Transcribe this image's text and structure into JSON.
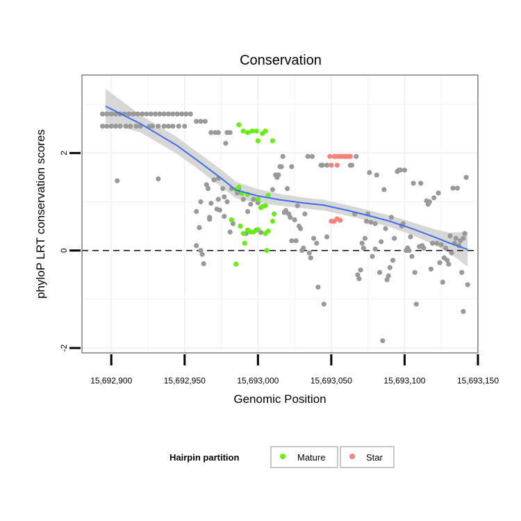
{
  "chart_data": {
    "type": "scatter",
    "title": "Conservation",
    "xlabel": "Genomic Position",
    "ylabel": "phyloP LRT conservation scores",
    "xlim": [
      15692880,
      15693150
    ],
    "ylim": [
      -2.1,
      3.6
    ],
    "x_ticks": [
      15692900,
      15692950,
      15693000,
      15693050,
      15693100,
      15693150
    ],
    "x_tick_labels": [
      "15,692,900",
      "15,692,950",
      "15,693,000",
      "15,693,050",
      "15,693,100",
      "15,693,150"
    ],
    "y_ticks": [
      -2,
      0,
      2
    ],
    "y_tick_labels": [
      "-2",
      "0",
      "2"
    ],
    "reference_line": {
      "y": 0,
      "style": "dashed"
    },
    "colors": {
      "other": "#999999",
      "Mature": "#66ee11",
      "Star": "#f5837a",
      "smooth": "#3b6df0",
      "band": "#d0d0d0",
      "panel_border": "#7f7f7f",
      "grid": "#f2f2f2"
    },
    "legend": {
      "title": "Hairpin partition",
      "entries": [
        "Mature",
        "Star"
      ],
      "position": "bottom"
    },
    "series": [
      {
        "name": "Other",
        "points": [
          [
            15692894,
            2.55
          ],
          [
            15692897,
            2.55
          ],
          [
            15692900,
            2.55
          ],
          [
            15692903,
            2.55
          ],
          [
            15692906,
            2.55
          ],
          [
            15692910,
            2.55
          ],
          [
            15692913,
            2.55
          ],
          [
            15692917,
            2.55
          ],
          [
            15692920,
            2.55
          ],
          [
            15692926,
            2.55
          ],
          [
            15692928,
            2.55
          ],
          [
            15692932,
            2.55
          ],
          [
            15692936,
            2.55
          ],
          [
            15692939,
            2.55
          ],
          [
            15692942,
            2.55
          ],
          [
            15692946,
            2.55
          ],
          [
            15692950,
            2.55
          ],
          [
            15692894,
            2.8
          ],
          [
            15692897,
            2.8
          ],
          [
            15692900,
            2.8
          ],
          [
            15692903,
            2.8
          ],
          [
            15692906,
            2.8
          ],
          [
            15692909,
            2.8
          ],
          [
            15692912,
            2.8
          ],
          [
            15692915,
            2.8
          ],
          [
            15692918,
            2.8
          ],
          [
            15692921,
            2.8
          ],
          [
            15692924,
            2.8
          ],
          [
            15692927,
            2.8
          ],
          [
            15692930,
            2.8
          ],
          [
            15692933,
            2.8
          ],
          [
            15692936,
            2.8
          ],
          [
            15692939,
            2.8
          ],
          [
            15692942,
            2.8
          ],
          [
            15692945,
            2.8
          ],
          [
            15692948,
            2.8
          ],
          [
            15692951,
            2.8
          ],
          [
            15692954,
            2.8
          ],
          [
            15692958,
            2.65
          ],
          [
            15692961,
            2.65
          ],
          [
            15692964,
            2.65
          ],
          [
            15692968,
            2.42
          ],
          [
            15692971,
            2.42
          ],
          [
            15692973,
            2.42
          ],
          [
            15692979,
            2.42
          ],
          [
            15692981,
            2.42
          ],
          [
            15692978,
            2.2
          ],
          [
            15692904,
            1.43
          ],
          [
            15692932,
            1.47
          ],
          [
            15692958,
            0.8
          ],
          [
            15692958,
            0.1
          ],
          [
            15692960,
            0.47
          ],
          [
            15692961,
            1.0
          ],
          [
            15692961,
            0.0
          ],
          [
            15692962,
            -0.08
          ],
          [
            15692963,
            -0.27
          ],
          [
            15692965,
            1.35
          ],
          [
            15692966,
            1.27
          ],
          [
            15692967,
            0.68
          ],
          [
            15692967,
            0.64
          ],
          [
            15692968,
            0.97
          ],
          [
            15692970,
            1.45
          ],
          [
            15692972,
            0.85
          ],
          [
            15692973,
            1.48
          ],
          [
            15692973,
            1.05
          ],
          [
            15692974,
            0.83
          ],
          [
            15692976,
            1.27
          ],
          [
            15692977,
            1.1
          ],
          [
            15692977,
            0.7
          ],
          [
            15692979,
            1.0
          ],
          [
            15692981,
            0.38
          ],
          [
            15692982,
            1.27
          ],
          [
            15692983,
            0.55
          ],
          [
            15692986,
            1.18
          ],
          [
            15692987,
            1.28
          ],
          [
            15692990,
            1.05
          ],
          [
            15692992,
            0.35
          ],
          [
            15692993,
            0.8
          ],
          [
            15692995,
            0.95
          ],
          [
            15692997,
            1.05
          ],
          [
            15692999,
            0.42
          ],
          [
            15693000,
            0.98
          ],
          [
            15693002,
            0.37
          ],
          [
            15693010,
            1.25
          ],
          [
            15693012,
            1.55
          ],
          [
            15693013,
            1.5
          ],
          [
            15693014,
            1.55
          ],
          [
            15693015,
            1.72
          ],
          [
            15693016,
            1.72
          ],
          [
            15693017,
            1.93
          ],
          [
            15693018,
            0.78
          ],
          [
            15693019,
            0.82
          ],
          [
            15693020,
            1.27
          ],
          [
            15693021,
            0.75
          ],
          [
            15693022,
            0.68
          ],
          [
            15693023,
            1.72
          ],
          [
            15693023,
            0.2
          ],
          [
            15693025,
            0.63
          ],
          [
            15693026,
            0.2
          ],
          [
            15693027,
            0.92
          ],
          [
            15693028,
            0.5
          ],
          [
            15693029,
            0.45
          ],
          [
            15693030,
            0.0
          ],
          [
            15693031,
            0.05
          ],
          [
            15693032,
            0.75
          ],
          [
            15693034,
            1.93
          ],
          [
            15693035,
            -0.05
          ],
          [
            15693036,
            -0.15
          ],
          [
            15693037,
            1.93
          ],
          [
            15693038,
            0.25
          ],
          [
            15693040,
            0.15
          ],
          [
            15693041,
            -0.75
          ],
          [
            15693043,
            1.75
          ],
          [
            15693044,
            1.75
          ],
          [
            15693045,
            -1.1
          ],
          [
            15693047,
            0.28
          ],
          [
            15693047,
            1.75
          ],
          [
            15693063,
            1.75
          ],
          [
            15693064,
            1.75
          ],
          [
            15693066,
            0.75
          ],
          [
            15693067,
            1.93
          ],
          [
            15693068,
            -0.5
          ],
          [
            15693069,
            -0.58
          ],
          [
            15693070,
            -0.4
          ],
          [
            15693071,
            0.15
          ],
          [
            15693072,
            0.05
          ],
          [
            15693073,
            0.25
          ],
          [
            15693074,
            0.6
          ],
          [
            15693075,
            0.75
          ],
          [
            15693076,
            1.6
          ],
          [
            15693077,
            0.58
          ],
          [
            15693078,
            -0.12
          ],
          [
            15693080,
            0.03
          ],
          [
            15693080,
            0.55
          ],
          [
            15693081,
            1.55
          ],
          [
            15693083,
            -0.45
          ],
          [
            15693084,
            0.18
          ],
          [
            15693085,
            -1.85
          ],
          [
            15693086,
            1.25
          ],
          [
            15693087,
            0.45
          ],
          [
            15693088,
            -0.6
          ],
          [
            15693089,
            -0.52
          ],
          [
            15693090,
            -0.35
          ],
          [
            15693091,
            0.68
          ],
          [
            15693092,
            -0.2
          ],
          [
            15693093,
            0.25
          ],
          [
            15693095,
            1.62
          ],
          [
            15693096,
            1.65
          ],
          [
            15693097,
            1.65
          ],
          [
            15693098,
            0.5
          ],
          [
            15693099,
            0.55
          ],
          [
            15693100,
            1.65
          ],
          [
            15693101,
            0.0
          ],
          [
            15693102,
            0.05
          ],
          [
            15693103,
            0.0
          ],
          [
            15693104,
            0.28
          ],
          [
            15693105,
            -0.12
          ],
          [
            15693106,
            1.38
          ],
          [
            15693107,
            -0.45
          ],
          [
            15693108,
            -1.1
          ],
          [
            15693110,
            0.08
          ],
          [
            15693111,
            1.38
          ],
          [
            15693112,
            0.1
          ],
          [
            15693113,
            0.05
          ],
          [
            15693115,
            1.02
          ],
          [
            15693116,
            0.95
          ],
          [
            15693117,
            1.0
          ],
          [
            15693118,
            -0.38
          ],
          [
            15693119,
            0.15
          ],
          [
            15693120,
            1.08
          ],
          [
            15693122,
            0.15
          ],
          [
            15693123,
            1.18
          ],
          [
            15693124,
            -0.25
          ],
          [
            15693125,
            0.12
          ],
          [
            15693126,
            -0.65
          ],
          [
            15693127,
            -0.15
          ],
          [
            15693128,
            0.05
          ],
          [
            15693129,
            -0.2
          ],
          [
            15693130,
            -0.28
          ],
          [
            15693131,
            0.3
          ],
          [
            15693132,
            -0.05
          ],
          [
            15693133,
            1.28
          ],
          [
            15693134,
            0.15
          ],
          [
            15693135,
            0.25
          ],
          [
            15693136,
            1.28
          ],
          [
            15693137,
            0.1
          ],
          [
            15693138,
            0.2
          ],
          [
            15693139,
            -0.45
          ],
          [
            15693140,
            0.25
          ],
          [
            15693140,
            -1.25
          ],
          [
            15693141,
            0.35
          ],
          [
            15693142,
            1.5
          ],
          [
            15693143,
            -0.7
          ]
        ]
      },
      {
        "name": "Mature",
        "points": [
          [
            15692987,
            2.58
          ],
          [
            15692990,
            2.45
          ],
          [
            15692993,
            2.42
          ],
          [
            15692996,
            2.45
          ],
          [
            15692999,
            2.45
          ],
          [
            15693000,
            2.25
          ],
          [
            15693003,
            2.4
          ],
          [
            15693005,
            2.45
          ],
          [
            15693010,
            2.25
          ],
          [
            15692985,
            1.25
          ],
          [
            15692987,
            1.3
          ],
          [
            15692989,
            1.17
          ],
          [
            15692993,
            1.15
          ],
          [
            15693000,
            1.05
          ],
          [
            15693002,
            0.88
          ],
          [
            15693003,
            0.9
          ],
          [
            15693005,
            0.92
          ],
          [
            15693007,
            1.13
          ],
          [
            15693011,
            0.75
          ],
          [
            15692982,
            0.63
          ],
          [
            15692988,
            0.5
          ],
          [
            15692990,
            0.35
          ],
          [
            15692993,
            0.42
          ],
          [
            15692995,
            0.38
          ],
          [
            15692997,
            0.38
          ],
          [
            15693000,
            0.43
          ],
          [
            15693005,
            0.35
          ],
          [
            15693007,
            0.4
          ],
          [
            15693010,
            0.6
          ],
          [
            15692985,
            -0.28
          ],
          [
            15692991,
            0.15
          ],
          [
            15693006,
            0.0
          ]
        ]
      },
      {
        "name": "Star",
        "points": [
          [
            15693049,
            1.93
          ],
          [
            15693050,
            1.75
          ],
          [
            15693052,
            1.93
          ],
          [
            15693053,
            1.93
          ],
          [
            15693054,
            1.75
          ],
          [
            15693055,
            1.93
          ],
          [
            15693056,
            1.93
          ],
          [
            15693057,
            1.93
          ],
          [
            15693058,
            1.93
          ],
          [
            15693059,
            1.93
          ],
          [
            15693060,
            1.93
          ],
          [
            15693061,
            1.93
          ],
          [
            15693062,
            1.93
          ],
          [
            15693063,
            1.93
          ],
          [
            15693050,
            0.6
          ],
          [
            15693052,
            0.6
          ],
          [
            15693054,
            0.65
          ],
          [
            15693056,
            0.62
          ]
        ]
      }
    ],
    "smooth": {
      "x": [
        15692896,
        15692920,
        15692945,
        15692960,
        15692975,
        15692985,
        15693000,
        15693015,
        15693030,
        15693045,
        15693060,
        15693075,
        15693090,
        15693105,
        15693120,
        15693130,
        15693143
      ],
      "y": [
        2.96,
        2.6,
        2.15,
        1.82,
        1.48,
        1.24,
        1.12,
        1.04,
        0.98,
        0.93,
        0.83,
        0.72,
        0.6,
        0.45,
        0.28,
        0.16,
        0.02
      ],
      "lower": [
        2.62,
        2.42,
        1.98,
        1.65,
        1.3,
        1.07,
        0.98,
        0.92,
        0.87,
        0.82,
        0.72,
        0.61,
        0.48,
        0.32,
        0.12,
        -0.04,
        -0.33
      ],
      "upper": [
        3.32,
        2.78,
        2.32,
        1.99,
        1.66,
        1.41,
        1.26,
        1.16,
        1.09,
        1.04,
        0.94,
        0.83,
        0.72,
        0.58,
        0.44,
        0.37,
        0.38
      ]
    }
  }
}
